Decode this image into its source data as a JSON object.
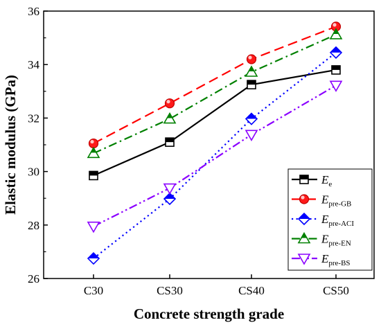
{
  "chart_data": {
    "type": "line",
    "xlabel": "Concrete strength grade",
    "ylabel": "Elastic modulus (GPa)",
    "categories": [
      "C30",
      "CS30",
      "CS40",
      "CS50"
    ],
    "ylim": [
      26,
      36
    ],
    "yticks": [
      26,
      28,
      30,
      32,
      34,
      36
    ],
    "legend_position": "bottom-right",
    "grid": false,
    "series": [
      {
        "name": "E",
        "subscript": "e",
        "values": [
          29.85,
          31.1,
          33.25,
          33.8
        ],
        "color": "#000000",
        "marker": "square",
        "line": "solid"
      },
      {
        "name": "E",
        "subscript": "pre-GB",
        "values": [
          31.05,
          32.55,
          34.2,
          35.42
        ],
        "color": "#ff0000",
        "marker": "circle",
        "line": "dashed"
      },
      {
        "name": "E",
        "subscript": "pre-ACI",
        "values": [
          26.75,
          28.98,
          31.97,
          34.45
        ],
        "color": "#0000ff",
        "marker": "diamond",
        "line": "dotted"
      },
      {
        "name": "E",
        "subscript": "pre-EN",
        "values": [
          30.68,
          31.97,
          33.72,
          35.12
        ],
        "color": "#008000",
        "marker": "triangle-up",
        "line": "dashdot"
      },
      {
        "name": "E",
        "subscript": "pre-BS",
        "values": [
          27.95,
          29.38,
          31.38,
          33.22
        ],
        "color": "#8b00ff",
        "marker": "triangle-down",
        "line": "dashdotdot"
      }
    ]
  }
}
